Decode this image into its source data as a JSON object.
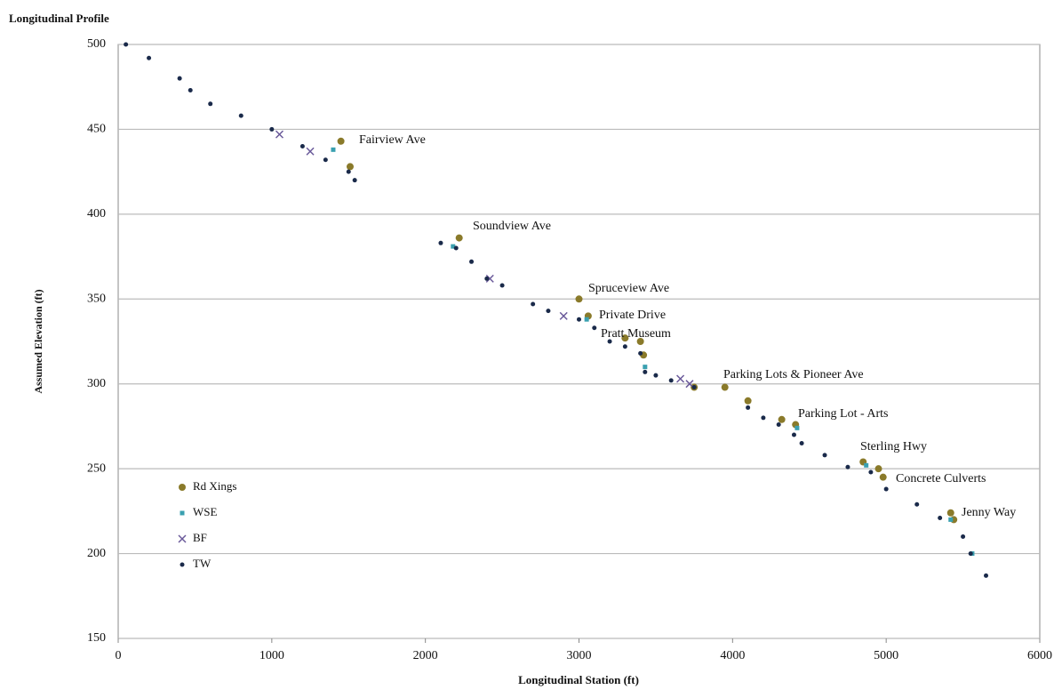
{
  "chart_data": {
    "type": "scatter",
    "title": "Longitudinal Profile",
    "xlabel": "Longitudinal Station (ft)",
    "ylabel": "Assumed Elevation (ft)",
    "xlim": [
      0,
      6000
    ],
    "xticks": [
      0,
      1000,
      2000,
      3000,
      4000,
      5000,
      6000
    ],
    "ylim": [
      150,
      500
    ],
    "yticks": [
      150,
      200,
      250,
      300,
      350,
      400,
      450,
      500
    ],
    "grid": true,
    "legend": "lower left",
    "annotations": [
      "Fairview Ave",
      "Soundview Ave",
      "Spruceview Ave",
      "Private Drive",
      "Pratt Museum",
      "Parking Lots & Pioneer Ave",
      "Parking Lot - Arts",
      "Sterling Hwy",
      "Concrete Culverts",
      "Jenny Way"
    ],
    "series": [
      {
        "name": "Rd Xings",
        "color": "#8a7a2a",
        "marker": "circle",
        "x": [
          1450,
          1510,
          2220,
          3000,
          3060,
          3300,
          3400,
          3420,
          3750,
          3950,
          4100,
          4320,
          4410,
          4850,
          4950,
          4980,
          5420,
          5440
        ],
        "values": [
          443,
          428,
          386,
          350,
          340,
          327,
          325,
          317,
          298,
          298,
          290,
          279,
          276,
          254,
          250,
          245,
          224,
          220
        ]
      },
      {
        "name": "WSE",
        "color": "#3aa0b0",
        "marker": "square",
        "x": [
          1400,
          2180,
          3050,
          3430,
          4420,
          4870,
          5420,
          5560
        ],
        "values": [
          438,
          381,
          338,
          310,
          274,
          252,
          220,
          200
        ]
      },
      {
        "name": "BF",
        "color": "#6a5a9a",
        "marker": "x",
        "x": [
          1050,
          1250,
          2420,
          2900,
          3660,
          3720
        ],
        "values": [
          447,
          437,
          362,
          340,
          303,
          300
        ]
      },
      {
        "name": "TW",
        "color": "#1a2a4a",
        "marker": "dot",
        "x": [
          50,
          200,
          400,
          470,
          600,
          800,
          1000,
          1200,
          1350,
          1500,
          1540,
          2100,
          2200,
          2300,
          2400,
          2500,
          2700,
          2800,
          3000,
          3100,
          3200,
          3300,
          3400,
          3430,
          3500,
          3600,
          3750,
          4100,
          4200,
          4300,
          4400,
          4450,
          4600,
          4750,
          4900,
          5000,
          5200,
          5350,
          5500,
          5550,
          5650
        ],
        "values": [
          500,
          492,
          480,
          473,
          465,
          458,
          450,
          440,
          432,
          425,
          420,
          383,
          380,
          372,
          362,
          358,
          347,
          343,
          338,
          333,
          325,
          322,
          318,
          307,
          305,
          302,
          298,
          286,
          280,
          276,
          270,
          265,
          258,
          251,
          248,
          238,
          229,
          221,
          210,
          200,
          187
        ]
      }
    ]
  }
}
